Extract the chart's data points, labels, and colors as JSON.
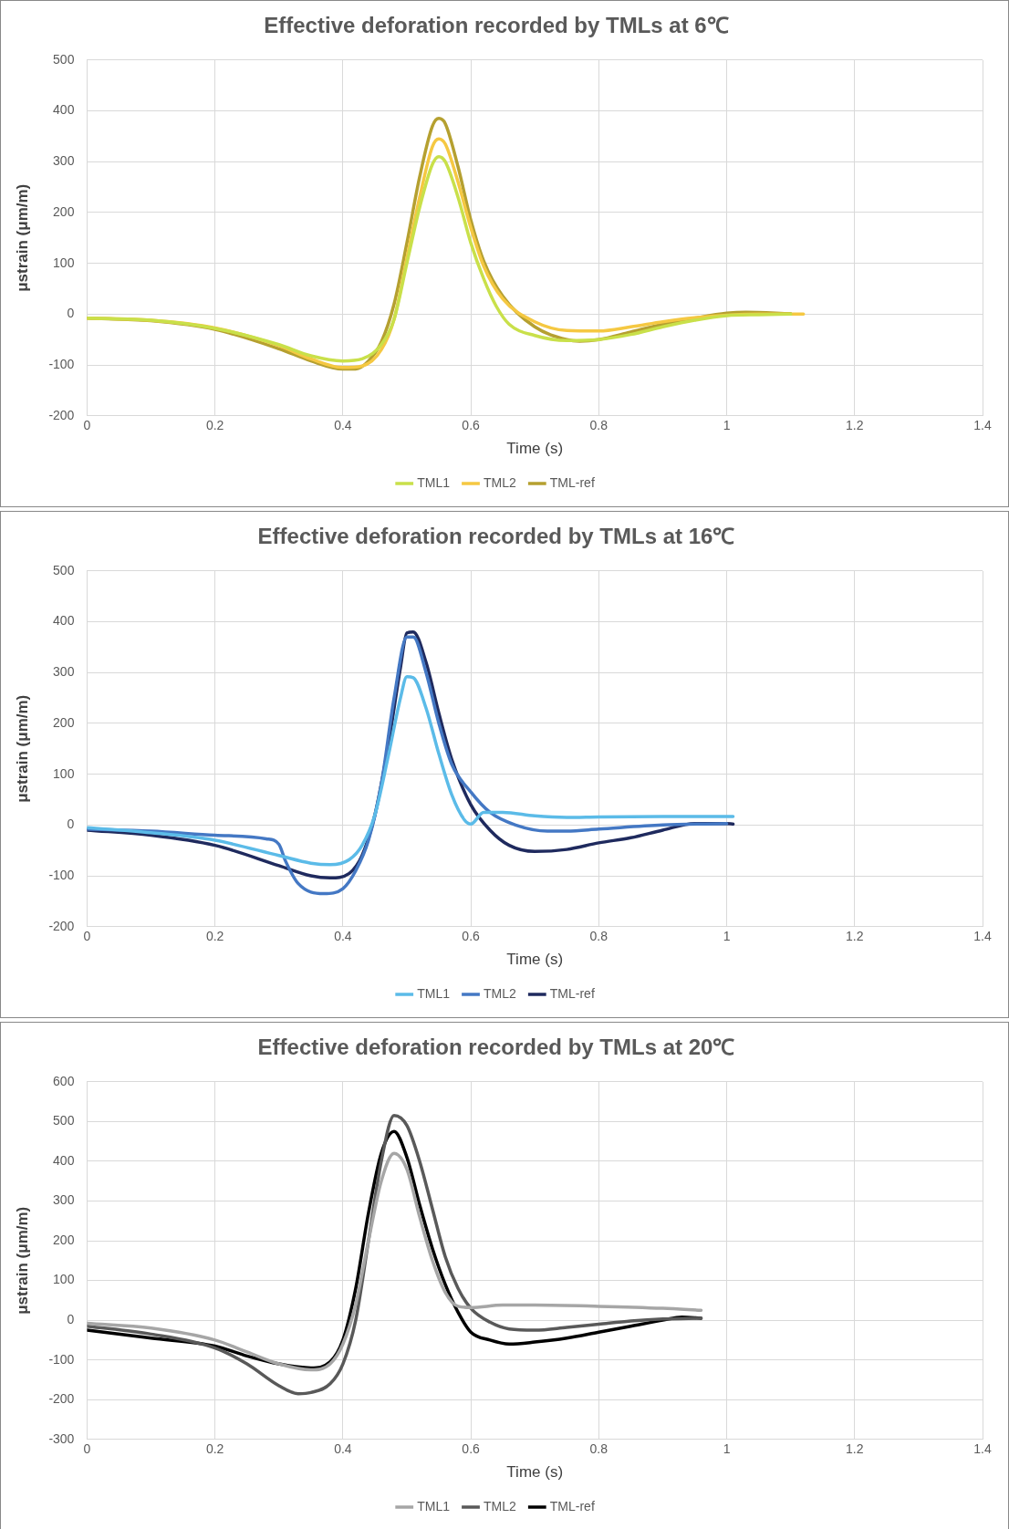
{
  "chart_data": [
    {
      "type": "line",
      "title": "Effective deforation recorded by TMLs at 6℃",
      "xlabel": "Time (s)",
      "ylabel": "μstrain (μm/m)",
      "xlim": [
        0,
        1.4
      ],
      "xticks": [
        0,
        0.2,
        0.4,
        0.6,
        0.8,
        1,
        1.2,
        1.4
      ],
      "ylim": [
        -200,
        500
      ],
      "yticks": [
        -200,
        -100,
        0,
        100,
        200,
        300,
        400,
        500
      ],
      "grid": true,
      "legend": "bottom",
      "marker": "none",
      "line_style": "solid",
      "series": [
        {
          "name": "TML1",
          "color": "#c9e04a",
          "x": [
            0,
            0.1,
            0.2,
            0.3,
            0.35,
            0.4,
            0.43,
            0.46,
            0.48,
            0.5,
            0.52,
            0.54,
            0.55,
            0.56,
            0.58,
            0.6,
            0.62,
            0.64,
            0.66,
            0.7,
            0.75,
            0.8,
            0.85,
            0.9,
            0.95,
            1.0,
            1.05,
            1.1
          ],
          "values": [
            -8,
            -12,
            -28,
            -60,
            -82,
            -92,
            -88,
            -60,
            -10,
            100,
            210,
            295,
            310,
            300,
            230,
            140,
            70,
            15,
            -20,
            -42,
            -52,
            -50,
            -40,
            -25,
            -12,
            -3,
            -1,
            0
          ]
        },
        {
          "name": "TML2",
          "color": "#f5c842",
          "x": [
            0,
            0.1,
            0.2,
            0.3,
            0.35,
            0.4,
            0.43,
            0.46,
            0.48,
            0.5,
            0.52,
            0.54,
            0.55,
            0.56,
            0.58,
            0.6,
            0.62,
            0.65,
            0.7,
            0.75,
            0.8,
            0.85,
            0.9,
            0.95,
            1.0,
            1.05,
            1.12
          ],
          "values": [
            -8,
            -12,
            -27,
            -62,
            -88,
            -105,
            -102,
            -70,
            -10,
            110,
            230,
            330,
            345,
            335,
            260,
            170,
            95,
            30,
            -15,
            -32,
            -33,
            -25,
            -15,
            -7,
            -2,
            0,
            0
          ]
        },
        {
          "name": "TML-ref",
          "color": "#b5a030",
          "x": [
            0,
            0.1,
            0.2,
            0.3,
            0.35,
            0.4,
            0.42,
            0.44,
            0.46,
            0.48,
            0.5,
            0.52,
            0.54,
            0.55,
            0.56,
            0.58,
            0.6,
            0.62,
            0.65,
            0.7,
            0.75,
            0.77,
            0.8,
            0.85,
            0.9,
            0.95,
            1.0,
            1.03,
            1.1
          ],
          "values": [
            -8,
            -13,
            -30,
            -68,
            -92,
            -108,
            -108,
            -92,
            -55,
            20,
            140,
            270,
            370,
            385,
            375,
            290,
            185,
            105,
            35,
            -25,
            -50,
            -53,
            -50,
            -35,
            -20,
            -8,
            2,
            4,
            1
          ]
        }
      ]
    },
    {
      "type": "line",
      "title": "Effective deforation recorded by TMLs at 16℃",
      "xlabel": "Time (s)",
      "ylabel": "μstrain (μm/m)",
      "xlim": [
        0,
        1.4
      ],
      "xticks": [
        0,
        0.2,
        0.4,
        0.6,
        0.8,
        1,
        1.2,
        1.4
      ],
      "ylim": [
        -200,
        500
      ],
      "yticks": [
        -200,
        -100,
        0,
        100,
        200,
        300,
        400,
        500
      ],
      "grid": true,
      "legend": "bottom",
      "marker": "none",
      "line_style": "solid",
      "series": [
        {
          "name": "TML1",
          "color": "#5bbbe8",
          "x": [
            0,
            0.1,
            0.2,
            0.3,
            0.35,
            0.38,
            0.41,
            0.43,
            0.45,
            0.47,
            0.49,
            0.5,
            0.51,
            0.53,
            0.55,
            0.57,
            0.59,
            0.6,
            0.62,
            0.65,
            0.7,
            0.75,
            0.8,
            0.9,
            1.0,
            1.01
          ],
          "values": [
            -5,
            -15,
            -30,
            -60,
            -75,
            -78,
            -68,
            -40,
            20,
            130,
            250,
            292,
            290,
            230,
            140,
            60,
            10,
            2,
            25,
            25,
            18,
            15,
            16,
            17,
            17,
            17
          ]
        },
        {
          "name": "TML2",
          "color": "#4478c4",
          "x": [
            0,
            0.1,
            0.2,
            0.28,
            0.3,
            0.31,
            0.33,
            0.37,
            0.4,
            0.42,
            0.44,
            0.46,
            0.48,
            0.5,
            0.51,
            0.53,
            0.55,
            0.57,
            0.6,
            0.63,
            0.67,
            0.72,
            0.75,
            0.8,
            0.9,
            1.0
          ],
          "values": [
            -8,
            -12,
            -20,
            -27,
            -38,
            -70,
            -115,
            -135,
            -125,
            -90,
            -30,
            80,
            250,
            370,
            370,
            300,
            200,
            120,
            65,
            25,
            0,
            -12,
            -12,
            -8,
            0,
            3
          ]
        },
        {
          "name": "TML-ref",
          "color": "#1f2a5e",
          "x": [
            0,
            0.1,
            0.2,
            0.3,
            0.35,
            0.38,
            0.41,
            0.43,
            0.45,
            0.47,
            0.49,
            0.5,
            0.51,
            0.53,
            0.55,
            0.57,
            0.6,
            0.63,
            0.66,
            0.7,
            0.75,
            0.8,
            0.85,
            0.9,
            0.95,
            1.0,
            1.01
          ],
          "values": [
            -10,
            -20,
            -40,
            -80,
            -100,
            -104,
            -95,
            -60,
            20,
            150,
            310,
            378,
            380,
            320,
            220,
            130,
            40,
            -10,
            -40,
            -52,
            -48,
            -35,
            -25,
            -10,
            3,
            3,
            2
          ]
        }
      ]
    },
    {
      "type": "line",
      "title": "Effective deforation recorded by TMLs at 20℃",
      "xlabel": "Time (s)",
      "ylabel": "μstrain (μm/m)",
      "xlim": [
        0,
        1.4
      ],
      "xticks": [
        0,
        0.2,
        0.4,
        0.6,
        0.8,
        1,
        1.2,
        1.4
      ],
      "ylim": [
        -300,
        600
      ],
      "yticks": [
        -300,
        -200,
        -100,
        0,
        100,
        200,
        300,
        400,
        500,
        600
      ],
      "grid": true,
      "legend": "bottom",
      "marker": "none",
      "line_style": "solid",
      "series": [
        {
          "name": "TML1",
          "color": "#a6a6a6",
          "x": [
            0,
            0.1,
            0.2,
            0.25,
            0.3,
            0.35,
            0.38,
            0.4,
            0.42,
            0.44,
            0.46,
            0.48,
            0.5,
            0.52,
            0.54,
            0.56,
            0.58,
            0.6,
            0.65,
            0.7,
            0.8,
            0.9,
            0.96
          ],
          "values": [
            -8,
            -20,
            -50,
            -80,
            -110,
            -125,
            -110,
            -60,
            40,
            200,
            350,
            420,
            380,
            260,
            150,
            70,
            35,
            32,
            38,
            38,
            35,
            30,
            25
          ]
        },
        {
          "name": "TML2",
          "color": "#595959",
          "x": [
            0,
            0.1,
            0.2,
            0.25,
            0.3,
            0.33,
            0.35,
            0.38,
            0.4,
            0.42,
            0.44,
            0.46,
            0.48,
            0.5,
            0.52,
            0.54,
            0.56,
            0.58,
            0.6,
            0.63,
            0.66,
            0.7,
            0.75,
            0.8,
            0.85,
            0.9,
            0.96
          ],
          "values": [
            -15,
            -35,
            -70,
            -110,
            -165,
            -185,
            -182,
            -160,
            -110,
            0,
            200,
            400,
            515,
            490,
            400,
            280,
            160,
            80,
            30,
            -5,
            -22,
            -25,
            -18,
            -10,
            -2,
            3,
            5
          ]
        },
        {
          "name": "TML-ref",
          "color": "#000000",
          "x": [
            0,
            0.1,
            0.2,
            0.25,
            0.3,
            0.35,
            0.38,
            0.4,
            0.42,
            0.44,
            0.46,
            0.48,
            0.5,
            0.52,
            0.54,
            0.56,
            0.58,
            0.6,
            0.63,
            0.66,
            0.7,
            0.75,
            0.8,
            0.85,
            0.9,
            0.93,
            0.96
          ],
          "values": [
            -25,
            -45,
            -65,
            -90,
            -110,
            -120,
            -105,
            -50,
            80,
            270,
            420,
            475,
            410,
            290,
            180,
            90,
            20,
            -30,
            -50,
            -60,
            -55,
            -45,
            -30,
            -15,
            0,
            8,
            5
          ]
        }
      ]
    }
  ]
}
